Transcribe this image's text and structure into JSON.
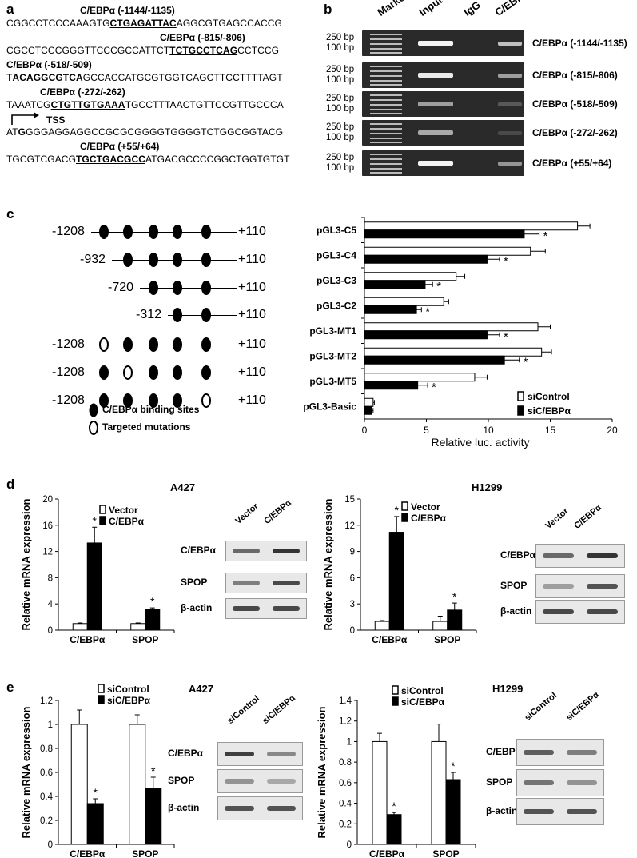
{
  "panel_a": {
    "label": "a",
    "rows": [
      {
        "label": "C/EBPα (-1144/-1135)",
        "pre": "CGGCCTCCCAAAGTG",
        "site": "CTGAGATTAC",
        "post": "AGGCGTGAGCCACCG"
      },
      {
        "label": "C/EBPα (-815/-806)",
        "pre": "CGCCTCCCGGGTTCCCGCCATTCT",
        "site": "TCTGCCTCAG",
        "post": "CCTCCG"
      },
      {
        "label": "C/EBPα (-518/-509)",
        "pre": "T",
        "site": "ACAGGCGTCA",
        "post": "GCCACCATGCGTGGTCAGCTTCCTTTTAGT"
      },
      {
        "label": "C/EBPα (-272/-262)",
        "pre": "TAAATCG",
        "site": "CTGTTGTGAAA",
        "post": "TGCCTTTAACTGTTCCGTTGCCCA"
      },
      {
        "label": "TSS",
        "pre": "AT",
        "site": "G",
        "post": "GGGAGGAGGCCGCGCGGGGTGGGGTCTGGCGGTACG"
      },
      {
        "label": "C/EBPα (+55/+64)",
        "pre": "TGCGTCGACG",
        "site": "TGCTGACGCC",
        "post": "ATGACGCCCCGGCTGGTGTGT"
      }
    ]
  },
  "panel_b": {
    "label": "b",
    "columns": [
      "Marker",
      "Input",
      "IgG",
      "C/EBPα"
    ],
    "size_top": "250 bp",
    "size_bottom": "100 bp",
    "rows": [
      "C/EBPα (-1144/-1135)",
      "C/EBPα (-815/-806)",
      "C/EBPα (-518/-509)",
      "C/EBPα (-272/-262)",
      "C/EBPα (+55/+64)"
    ]
  },
  "panel_c": {
    "label": "c",
    "constructs": [
      {
        "start": "-1208",
        "end": "+110"
      },
      {
        "start": "-932",
        "end": "+110"
      },
      {
        "start": "-720",
        "end": "+110"
      },
      {
        "start": "-312",
        "end": "+110"
      },
      {
        "start": "-1208",
        "end": "+110"
      },
      {
        "start": "-1208",
        "end": "+110"
      },
      {
        "start": "-1208",
        "end": "+110"
      }
    ],
    "legend_binding": "C/EBPα binding sites",
    "legend_mutation": "Targeted mutations"
  },
  "panel_d": {
    "label": "d"
  },
  "panel_e": {
    "label": "e"
  },
  "chart_data": [
    {
      "type": "bar",
      "orientation": "horizontal",
      "categories": [
        "pGL3-C5",
        "pGL3-C4",
        "pGL3-C3",
        "pGL3-C2",
        "pGL3-MT1",
        "pGL3-MT2",
        "pGL3-MT5",
        "pGL3-Basic"
      ],
      "series": [
        {
          "name": "siControl",
          "values": [
            17.2,
            13.4,
            7.4,
            6.4,
            14.0,
            14.3,
            8.9,
            0.7
          ],
          "errors": [
            1.0,
            1.2,
            0.7,
            0.4,
            1.0,
            0.8,
            1.0,
            0.1
          ]
        },
        {
          "name": "siC/EBPα",
          "values": [
            12.9,
            9.9,
            4.9,
            4.2,
            9.9,
            11.3,
            4.3,
            0.6
          ],
          "errors": [
            1.2,
            1.0,
            0.6,
            0.4,
            1.0,
            1.2,
            0.8,
            0.1
          ]
        }
      ],
      "significance": [
        "*",
        "*",
        "*",
        "*",
        "*",
        "*",
        "*",
        ""
      ],
      "xlabel": "Relative luc. activity",
      "xlim": [
        0,
        20
      ],
      "xticks": [
        "0",
        "5",
        "10",
        "15",
        "20"
      ],
      "legend_position": "bottom-right"
    },
    {
      "type": "bar",
      "title": "A427",
      "categories": [
        "C/EBPα",
        "SPOP"
      ],
      "series": [
        {
          "name": "Vector",
          "values": [
            1.0,
            1.0
          ],
          "errors": [
            0.1,
            0.1
          ]
        },
        {
          "name": "C/EBPα",
          "values": [
            13.3,
            3.2
          ],
          "errors": [
            2.4,
            0.2
          ]
        }
      ],
      "significance": [
        "*",
        "*"
      ],
      "ylabel": "Relative mRNA expression",
      "ylim": [
        0,
        20
      ],
      "yticks": [
        "0",
        "4",
        "8",
        "12",
        "16",
        "20"
      ],
      "western_blot": {
        "columns": [
          "Vector",
          "C/EBPα"
        ],
        "rows": [
          "C/EBPα",
          "SPOP",
          "β-actin"
        ]
      }
    },
    {
      "type": "bar",
      "title": "H1299",
      "categories": [
        "C/EBPα",
        "SPOP"
      ],
      "series": [
        {
          "name": "Vector",
          "values": [
            1.0,
            1.0
          ],
          "errors": [
            0.1,
            0.6
          ]
        },
        {
          "name": "C/EBPα",
          "values": [
            11.2,
            2.3
          ],
          "errors": [
            1.8,
            0.8
          ]
        }
      ],
      "significance": [
        "*",
        "*"
      ],
      "ylabel": "Relative mRNA expression",
      "ylim": [
        0,
        15
      ],
      "yticks": [
        "0",
        "3",
        "6",
        "9",
        "12",
        "15"
      ],
      "western_blot": {
        "columns": [
          "Vector",
          "C/EBPα"
        ],
        "rows": [
          "C/EBPα",
          "SPOP",
          "β-actin"
        ]
      }
    },
    {
      "type": "bar",
      "title": "A427",
      "categories": [
        "C/EBPα",
        "SPOP"
      ],
      "series": [
        {
          "name": "siControl",
          "values": [
            1.0,
            1.0
          ],
          "errors": [
            0.12,
            0.08
          ]
        },
        {
          "name": "siC/EBPα",
          "values": [
            0.34,
            0.47
          ],
          "errors": [
            0.04,
            0.09
          ]
        }
      ],
      "significance": [
        "*",
        "*"
      ],
      "ylabel": "Relative mRNA expression",
      "ylim": [
        0,
        1.2
      ],
      "yticks": [
        "0",
        "0.2",
        "0.4",
        "0.6",
        "0.8",
        "1",
        "1.2"
      ],
      "western_blot": {
        "columns": [
          "siControl",
          "siC/EBPα"
        ],
        "rows": [
          "C/EBPα",
          "SPOP",
          "β-actin"
        ]
      }
    },
    {
      "type": "bar",
      "title": "H1299",
      "categories": [
        "C/EBPα",
        "SPOP"
      ],
      "series": [
        {
          "name": "siControl",
          "values": [
            1.0,
            1.0
          ],
          "errors": [
            0.08,
            0.17
          ]
        },
        {
          "name": "siC/EBPα",
          "values": [
            0.29,
            0.63
          ],
          "errors": [
            0.02,
            0.07
          ]
        }
      ],
      "significance": [
        "*",
        "*"
      ],
      "ylabel": "Relative mRNA expression",
      "ylim": [
        0,
        1.4
      ],
      "yticks": [
        "0",
        "0.2",
        "0.4",
        "0.6",
        "0.8",
        "1",
        "1.2",
        "1.4"
      ],
      "western_blot": {
        "columns": [
          "siControl",
          "siC/EBPα"
        ],
        "rows": [
          "C/EBPα",
          "SPOP",
          "β-actin"
        ]
      }
    }
  ]
}
